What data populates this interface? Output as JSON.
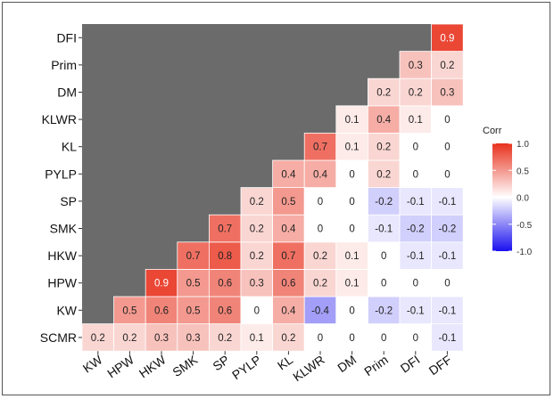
{
  "chart_data": {
    "type": "heatmap",
    "rows": [
      "SCMR",
      "KW",
      "HPW",
      "HKW",
      "SMK",
      "SP",
      "PYLP",
      "KL",
      "KLWR",
      "DM",
      "Prim",
      "DFI"
    ],
    "columns": [
      "KW",
      "HPW",
      "HKW",
      "SMK",
      "SP",
      "PYLP",
      "KL",
      "KLWR",
      "DM",
      "Prim",
      "DFI",
      "DFF"
    ],
    "values": [
      [
        0.2,
        0.2,
        0.3,
        0.3,
        0.2,
        0.1,
        0.2,
        0,
        0,
        0,
        0,
        -0.1
      ],
      [
        null,
        0.5,
        0.6,
        0.5,
        0.6,
        0,
        0.4,
        -0.4,
        0,
        -0.2,
        -0.1,
        -0.1
      ],
      [
        null,
        null,
        0.9,
        0.5,
        0.6,
        0.3,
        0.6,
        0.2,
        0.1,
        0,
        0,
        0
      ],
      [
        null,
        null,
        null,
        0.7,
        0.8,
        0.2,
        0.7,
        0.2,
        0.1,
        0,
        -0.1,
        -0.1
      ],
      [
        null,
        null,
        null,
        null,
        0.7,
        0.2,
        0.4,
        0,
        0,
        -0.1,
        -0.2,
        -0.2
      ],
      [
        null,
        null,
        null,
        null,
        null,
        0.2,
        0.5,
        0,
        0,
        -0.2,
        -0.1,
        -0.1
      ],
      [
        null,
        null,
        null,
        null,
        null,
        null,
        0.4,
        0.4,
        0,
        0.2,
        0,
        0
      ],
      [
        null,
        null,
        null,
        null,
        null,
        null,
        null,
        0.7,
        0.1,
        0.2,
        0,
        0
      ],
      [
        null,
        null,
        null,
        null,
        null,
        null,
        null,
        null,
        0.1,
        0.4,
        0.1,
        0
      ],
      [
        null,
        null,
        null,
        null,
        null,
        null,
        null,
        null,
        null,
        0.2,
        0.2,
        0.3
      ],
      [
        null,
        null,
        null,
        null,
        null,
        null,
        null,
        null,
        null,
        null,
        0.3,
        0.2
      ],
      [
        null,
        null,
        null,
        null,
        null,
        null,
        null,
        null,
        null,
        null,
        null,
        0.9
      ]
    ],
    "value_range": [
      -1,
      1
    ],
    "legend": {
      "title": "Corr",
      "ticks": [
        "1.0",
        "0.5",
        "0.0",
        "-0.5",
        "-1.0"
      ],
      "tick_values": [
        1,
        0.5,
        0,
        -0.5,
        -1
      ],
      "placement": "right"
    },
    "colors": {
      "positive": "#e8321e",
      "midpoint": "#ffffff",
      "negative": "#1a10ee",
      "background": "#6b6b6b"
    }
  }
}
